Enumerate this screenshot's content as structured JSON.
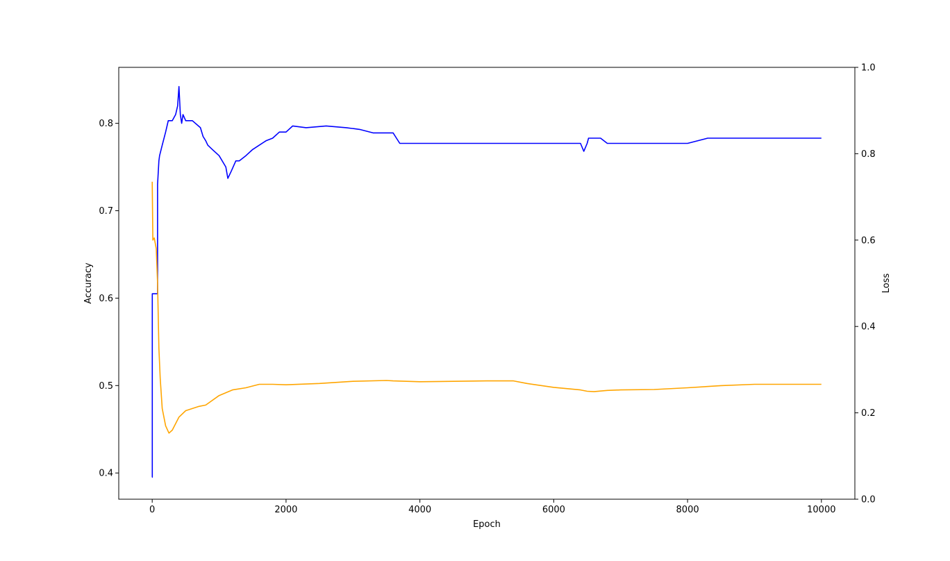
{
  "chart_data": {
    "type": "line",
    "title": "",
    "xlabel": "Epoch",
    "ylabel_left": "Accuracy",
    "ylabel_right": "Loss",
    "xlim": [
      -500,
      10500
    ],
    "ylim_left": [
      0.37,
      0.864
    ],
    "ylim_right": [
      0.0,
      1.0
    ],
    "x_ticks": [
      0,
      2000,
      4000,
      6000,
      8000,
      10000
    ],
    "y_left_ticks": [
      0.4,
      0.5,
      0.6,
      0.7,
      0.8
    ],
    "y_right_ticks": [
      0.0,
      0.2,
      0.4,
      0.6,
      0.8,
      1.0
    ],
    "grid": false,
    "series": [
      {
        "axis": "left",
        "color": "#0000ff",
        "x": [
          0,
          1,
          1,
          30,
          30,
          60,
          80,
          80,
          100,
          110,
          150,
          200,
          240,
          300,
          350,
          380,
          400,
          420,
          440,
          460,
          500,
          600,
          720,
          760,
          800,
          830,
          900,
          1000,
          1100,
          1130,
          1180,
          1250,
          1300,
          1400,
          1500,
          1600,
          1700,
          1800,
          1900,
          2000,
          2100,
          2300,
          2600,
          2900,
          3100,
          3300,
          3600,
          3650,
          3700,
          3720,
          4000,
          5000,
          6000,
          6400,
          6450,
          6500,
          6520,
          6700,
          6800,
          7000,
          7500,
          8000,
          8300,
          8600,
          9000,
          9500,
          10000
        ],
        "y": [
          0.395,
          0.395,
          0.605,
          0.605,
          0.605,
          0.605,
          0.605,
          0.73,
          0.757,
          0.763,
          0.775,
          0.79,
          0.803,
          0.803,
          0.81,
          0.82,
          0.842,
          0.81,
          0.8,
          0.81,
          0.803,
          0.803,
          0.795,
          0.785,
          0.78,
          0.775,
          0.77,
          0.763,
          0.75,
          0.737,
          0.745,
          0.757,
          0.757,
          0.763,
          0.77,
          0.775,
          0.78,
          0.783,
          0.79,
          0.79,
          0.797,
          0.795,
          0.797,
          0.795,
          0.793,
          0.789,
          0.789,
          0.783,
          0.777,
          0.777,
          0.777,
          0.777,
          0.777,
          0.777,
          0.768,
          0.777,
          0.783,
          0.783,
          0.777,
          0.777,
          0.777,
          0.777,
          0.783,
          0.783,
          0.783,
          0.783,
          0.783
        ]
      },
      {
        "axis": "right",
        "color": "#ffa500",
        "x": [
          0,
          10,
          30,
          60,
          80,
          100,
          120,
          150,
          200,
          250,
          300,
          350,
          400,
          500,
          600,
          700,
          800,
          1000,
          1200,
          1400,
          1500,
          1600,
          1700,
          1800,
          2000,
          2500,
          3000,
          3500,
          3600,
          4000,
          5000,
          5400,
          5600,
          6000,
          6400,
          6500,
          6600,
          6800,
          7000,
          7500,
          8000,
          8500,
          9000,
          9500,
          10000
        ],
        "y": [
          0.735,
          0.6,
          0.605,
          0.58,
          0.5,
          0.35,
          0.28,
          0.21,
          0.17,
          0.153,
          0.16,
          0.175,
          0.19,
          0.205,
          0.21,
          0.215,
          0.218,
          0.24,
          0.253,
          0.258,
          0.262,
          0.266,
          0.266,
          0.266,
          0.265,
          0.268,
          0.273,
          0.275,
          0.274,
          0.272,
          0.274,
          0.274,
          0.268,
          0.259,
          0.253,
          0.25,
          0.249,
          0.252,
          0.253,
          0.254,
          0.258,
          0.263,
          0.266,
          0.266,
          0.266
        ]
      }
    ]
  }
}
